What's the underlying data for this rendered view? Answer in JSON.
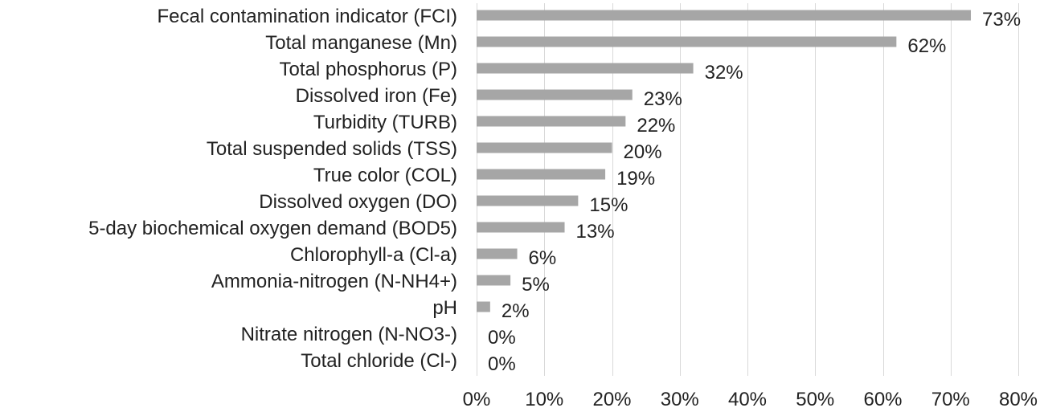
{
  "chart_data": {
    "type": "bar",
    "orientation": "horizontal",
    "categories": [
      "Fecal contamination indicator (FCI)",
      "Total manganese (Mn)",
      "Total phosphorus (P)",
      "Dissolved iron (Fe)",
      "Turbidity (TURB)",
      "Total suspended solids (TSS)",
      "True color (COL)",
      "Dissolved oxygen (DO)",
      "5-day biochemical oxygen demand (BOD5)",
      "Chlorophyll-a (Cl-a)",
      "Ammonia-nitrogen (N-NH4+)",
      "pH",
      "Nitrate nitrogen (N-NO3-)",
      "Total chloride (Cl-)"
    ],
    "values": [
      73,
      62,
      32,
      23,
      22,
      20,
      19,
      15,
      13,
      6,
      5,
      2,
      0,
      0
    ],
    "data_labels": [
      "73%",
      "62%",
      "32%",
      "23%",
      "22%",
      "20%",
      "19%",
      "15%",
      "13%",
      "6%",
      "5%",
      "2%",
      "0%",
      "0%"
    ],
    "xlim": [
      0,
      80
    ],
    "xticks": [
      0,
      10,
      20,
      30,
      40,
      50,
      60,
      70,
      80
    ],
    "xtick_labels": [
      "0%",
      "10%",
      "20%",
      "30%",
      "40%",
      "50%",
      "60%",
      "70%",
      "80%"
    ],
    "grid": true,
    "legend": "none",
    "title": "",
    "xlabel": "",
    "ylabel": "",
    "colors": {
      "bar": "#a6a6a6",
      "grid": "#d9d9d9",
      "text": "#222222"
    }
  }
}
